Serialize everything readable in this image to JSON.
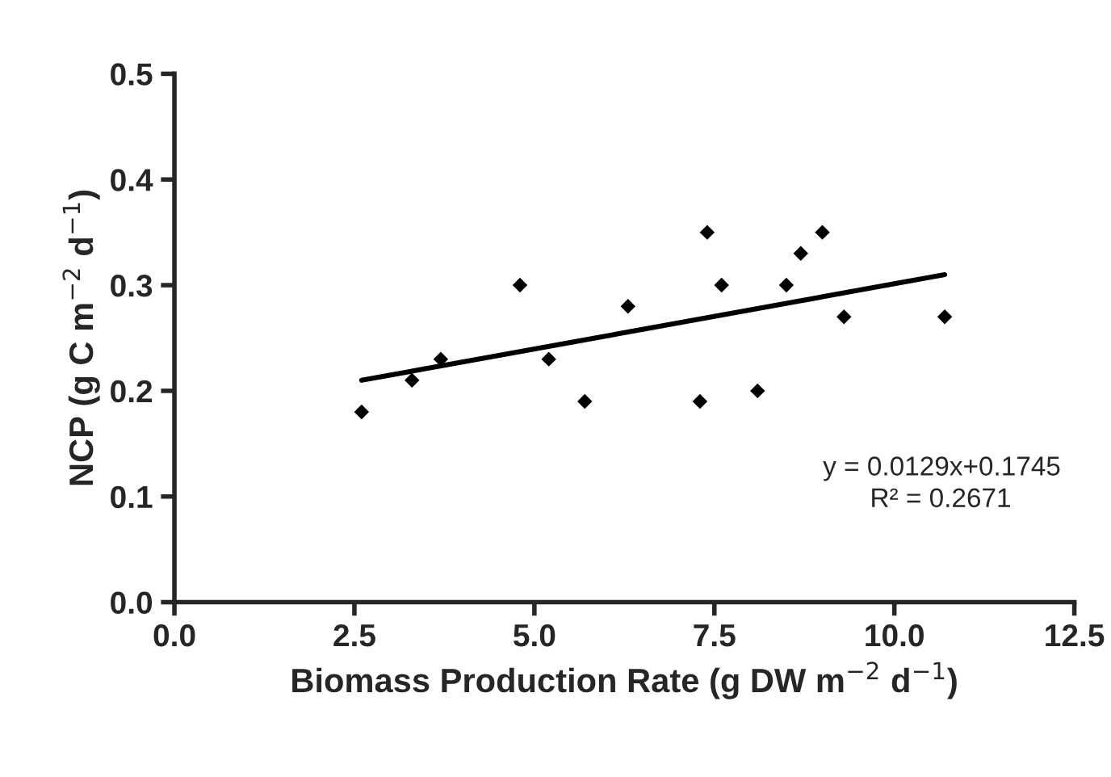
{
  "chart_data": {
    "type": "scatter",
    "xlabel": "Biomass Production Rate (g DW m$^{−2}$ d$^{−1}$)",
    "ylabel": "NCP (g C m$^{−2}$ d$^{−1}$)",
    "series": [
      {
        "color": "#000000",
        "marker": "diamond",
        "x": [
          2.6,
          3.3,
          3.7,
          4.8,
          5.2,
          5.7,
          6.3,
          7.3,
          7.4,
          7.6,
          8.1,
          8.5,
          8.7,
          9.0,
          9.3,
          10.7
        ],
        "values": [
          0.18,
          0.21,
          0.23,
          0.3,
          0.23,
          0.19,
          0.28,
          0.19,
          0.35,
          0.3,
          0.2,
          0.3,
          0.33,
          0.35,
          0.27,
          0.27
        ]
      },
      {
        "type": "line",
        "color": "#000000",
        "x": [
          2.6,
          10.7
        ],
        "values": [
          0.21,
          0.31
        ]
      }
    ],
    "annotations": [
      "y = 0.0129x+0.1745",
      "R² = 0.2671"
    ],
    "xlim": [
      0,
      12.5
    ],
    "xticks": [
      {
        "value": 0,
        "label": "0.0"
      },
      2.5,
      {
        "value": 5,
        "label": "5.0"
      },
      7.5,
      {
        "value": 10,
        "label": "10.0"
      },
      12.5
    ],
    "ylim": [
      0,
      0.5
    ],
    "yticks": [
      {
        "value": 0,
        "label": "0.0"
      },
      0.1,
      0.2,
      0.3,
      0.4,
      0.5
    ],
    "grid": false,
    "legend": false
  }
}
